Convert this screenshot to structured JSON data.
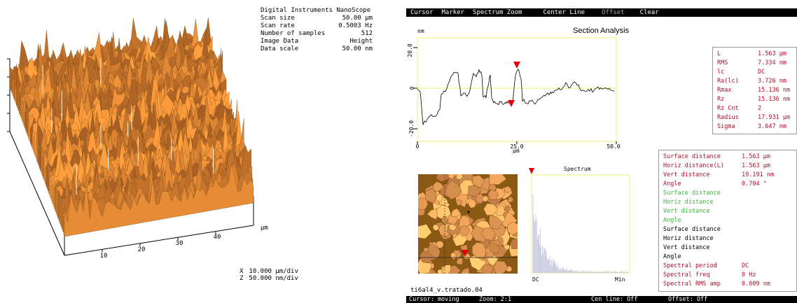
{
  "scan_info": {
    "header": "Digital Instruments NanoScope",
    "rows": [
      {
        "label": "Scan size",
        "value": "50.00 µm"
      },
      {
        "label": "Scan rate",
        "value": "0.5003 Hz"
      },
      {
        "label": "Number of samples",
        "value": "512"
      },
      {
        "label": "Image Data",
        "value": "Height"
      },
      {
        "label": "Data scale",
        "value": "50.00 nm"
      }
    ]
  },
  "axis3d": {
    "ticks": [
      "10",
      "20",
      "30",
      "40"
    ],
    "unit": "µm"
  },
  "scale_info": {
    "x_label": "X",
    "x_value": "10.000 µm/div",
    "z_label": "Z",
    "z_value": "50.000 nm/div"
  },
  "menu": {
    "items": [
      "Cursor",
      "Marker",
      "Spectrum Zoom",
      "Center Line",
      "Offset",
      "Clear"
    ]
  },
  "section": {
    "title": "Section Analysis",
    "y_unit": "nm",
    "x_unit": "µm",
    "y_ticks": [
      "20.0",
      "0",
      "-20.0"
    ],
    "x_ticks": [
      "0",
      "25.0",
      "50.0"
    ]
  },
  "stats": {
    "rows": [
      {
        "label": "L",
        "value": "1.563 µm"
      },
      {
        "label": "RMS",
        "value": "7.334 nm"
      },
      {
        "label": "lc",
        "value": "DC"
      },
      {
        "label": "Ra(lc)",
        "value": "3.726 nm"
      },
      {
        "label": "Rmax",
        "value": "15.136 nm"
      },
      {
        "label": "Rz",
        "value": "15.136 nm"
      },
      {
        "label": "Rz Cnt",
        "value": "2"
      },
      {
        "label": "Radius",
        "value": "17.931 µm"
      },
      {
        "label": "Sigma",
        "value": "3.647 nm"
      }
    ]
  },
  "distances": {
    "red": [
      {
        "label": "Surface distance",
        "value": "1.563 µm"
      },
      {
        "label": "Horiz distance(L)",
        "value": "1.563 µm"
      },
      {
        "label": "Vert distance",
        "value": "19.191 nm"
      },
      {
        "label": "Angle",
        "value": "0.704 °"
      }
    ],
    "green": [
      {
        "label": "Surface distance",
        "value": ""
      },
      {
        "label": "Horiz distance",
        "value": ""
      },
      {
        "label": "Vert distance",
        "value": ""
      },
      {
        "label": "Angle",
        "value": ""
      }
    ],
    "black": [
      {
        "label": "Surface distance",
        "value": ""
      },
      {
        "label": "Horiz distance",
        "value": ""
      },
      {
        "label": "Vert distance",
        "value": ""
      },
      {
        "label": "Angle",
        "value": ""
      }
    ],
    "spectral": [
      {
        "label": "Spectral period",
        "value": "DC"
      },
      {
        "label": "Spectral freq",
        "value": "0 Hz"
      },
      {
        "label": "Spectral RMS amp",
        "value": "0.009 nm"
      }
    ]
  },
  "spectrum": {
    "title": "Spectrum",
    "x_left": "DC",
    "x_right": "Min"
  },
  "file_label": "ti6al4_v.tratado.04",
  "status": {
    "cursor": "Cursor: moving",
    "zoom": "Zoom: 2:1",
    "cen_line": "Cen line: Off",
    "offset": "Offset: Off"
  },
  "colors": {
    "cursor_red": "#e00000",
    "stats_red": "#b80c2a",
    "green": "#3ab83a",
    "plot_frame": "#f0f070",
    "surface_brown": "#b08030"
  }
}
